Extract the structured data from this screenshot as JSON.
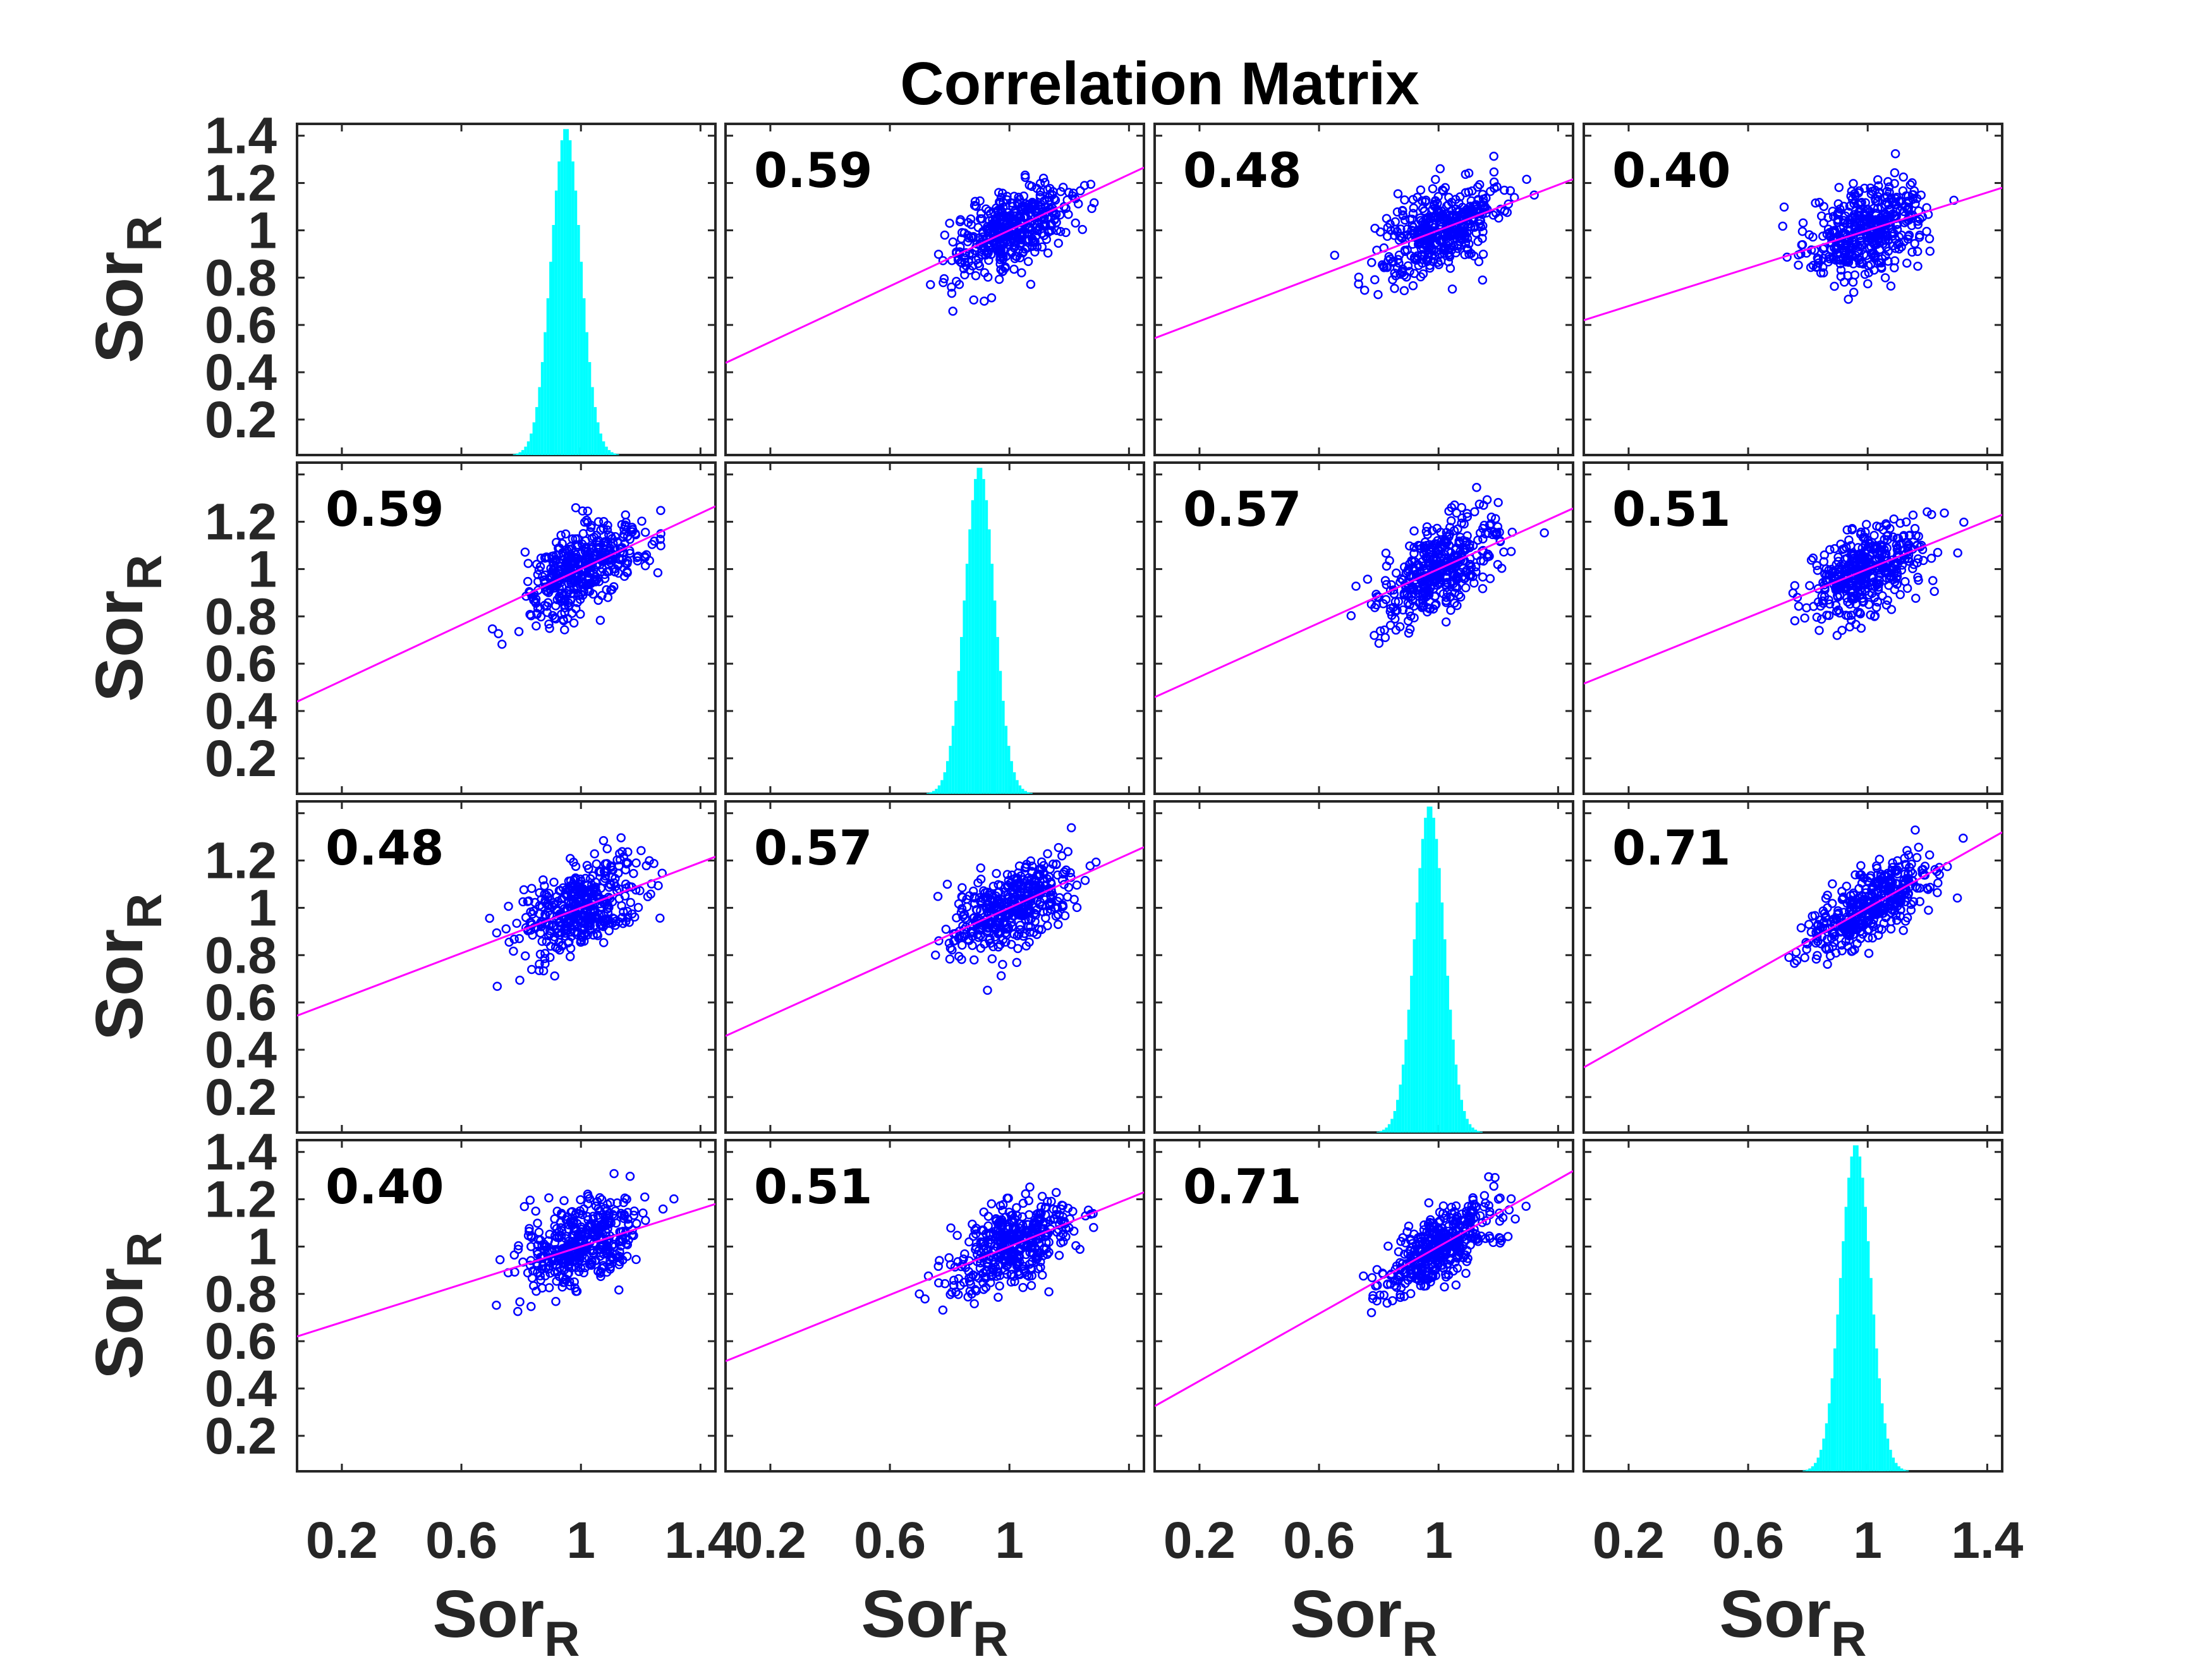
{
  "chart_data": {
    "type": "scatter-matrix",
    "title": "Correlation Matrix",
    "variable_label": "Sor",
    "variable_subscript": "R",
    "n_vars": 4,
    "correlations": [
      [
        null,
        "0.59",
        "0.48",
        "0.40"
      ],
      [
        "0.59",
        null,
        "0.57",
        "0.51"
      ],
      [
        "0.48",
        "0.57",
        null,
        "0.71"
      ],
      [
        "0.40",
        "0.51",
        "0.71",
        null
      ]
    ],
    "axis_range": [
      0.05,
      1.45
    ],
    "x_ticks": [
      [
        "0.2",
        "0.6",
        "1",
        "1.4"
      ],
      [
        "0.2",
        "0.6",
        "1"
      ],
      [
        "0.2",
        "0.6",
        "1"
      ],
      [
        "0.2",
        "0.6",
        "1",
        "1.4"
      ]
    ],
    "y_ticks": [
      [
        "0.2",
        "0.4",
        "0.6",
        "0.8",
        "1",
        "1.2",
        "1.4"
      ],
      [
        "0.2",
        "0.4",
        "0.6",
        "0.8",
        "1",
        "1.2"
      ],
      [
        "0.2",
        "0.4",
        "0.6",
        "0.8",
        "1",
        "1.2"
      ],
      [
        "0.2",
        "0.4",
        "0.6",
        "0.8",
        "1",
        "1.2",
        "1.4"
      ]
    ],
    "histogram_means": [
      0.95,
      0.9,
      0.97,
      0.96
    ],
    "histogram_sd": 0.05,
    "scatter_center": 1.0,
    "scatter_sd": 0.1,
    "colors": {
      "scatter": "#0000ff",
      "fit_line": "#ff00ff",
      "histogram": "#00ffff",
      "axes": "#262626"
    }
  }
}
